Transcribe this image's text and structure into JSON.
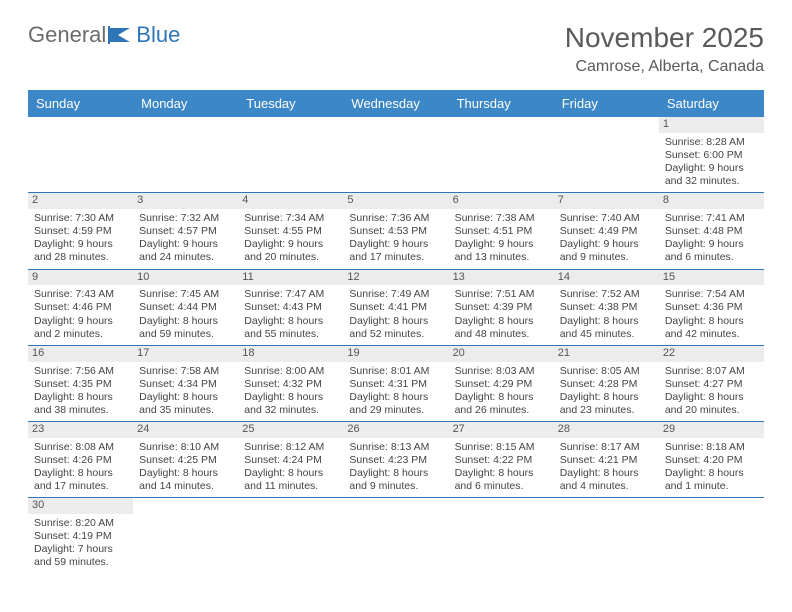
{
  "logo": {
    "text_a": "General",
    "text_b": "Blue"
  },
  "title": "November 2025",
  "location": "Camrose, Alberta, Canada",
  "colors": {
    "header_bg": "#3c87c7",
    "border": "#2f76b8",
    "daynum_bg": "#ececec",
    "text": "#444444",
    "title_text": "#5a5a5a",
    "logo_gray": "#6b6b6b",
    "logo_blue": "#2f76b8"
  },
  "fonts": {
    "title_size": 28,
    "location_size": 16,
    "header_size": 13,
    "cell_size": 10.5
  },
  "day_headers": [
    "Sunday",
    "Monday",
    "Tuesday",
    "Wednesday",
    "Thursday",
    "Friday",
    "Saturday"
  ],
  "weeks": [
    [
      null,
      null,
      null,
      null,
      null,
      null,
      {
        "n": "1",
        "sr": "Sunrise: 8:28 AM",
        "ss": "Sunset: 6:00 PM",
        "d1": "Daylight: 9 hours",
        "d2": "and 32 minutes."
      }
    ],
    [
      {
        "n": "2",
        "sr": "Sunrise: 7:30 AM",
        "ss": "Sunset: 4:59 PM",
        "d1": "Daylight: 9 hours",
        "d2": "and 28 minutes."
      },
      {
        "n": "3",
        "sr": "Sunrise: 7:32 AM",
        "ss": "Sunset: 4:57 PM",
        "d1": "Daylight: 9 hours",
        "d2": "and 24 minutes."
      },
      {
        "n": "4",
        "sr": "Sunrise: 7:34 AM",
        "ss": "Sunset: 4:55 PM",
        "d1": "Daylight: 9 hours",
        "d2": "and 20 minutes."
      },
      {
        "n": "5",
        "sr": "Sunrise: 7:36 AM",
        "ss": "Sunset: 4:53 PM",
        "d1": "Daylight: 9 hours",
        "d2": "and 17 minutes."
      },
      {
        "n": "6",
        "sr": "Sunrise: 7:38 AM",
        "ss": "Sunset: 4:51 PM",
        "d1": "Daylight: 9 hours",
        "d2": "and 13 minutes."
      },
      {
        "n": "7",
        "sr": "Sunrise: 7:40 AM",
        "ss": "Sunset: 4:49 PM",
        "d1": "Daylight: 9 hours",
        "d2": "and 9 minutes."
      },
      {
        "n": "8",
        "sr": "Sunrise: 7:41 AM",
        "ss": "Sunset: 4:48 PM",
        "d1": "Daylight: 9 hours",
        "d2": "and 6 minutes."
      }
    ],
    [
      {
        "n": "9",
        "sr": "Sunrise: 7:43 AM",
        "ss": "Sunset: 4:46 PM",
        "d1": "Daylight: 9 hours",
        "d2": "and 2 minutes."
      },
      {
        "n": "10",
        "sr": "Sunrise: 7:45 AM",
        "ss": "Sunset: 4:44 PM",
        "d1": "Daylight: 8 hours",
        "d2": "and 59 minutes."
      },
      {
        "n": "11",
        "sr": "Sunrise: 7:47 AM",
        "ss": "Sunset: 4:43 PM",
        "d1": "Daylight: 8 hours",
        "d2": "and 55 minutes."
      },
      {
        "n": "12",
        "sr": "Sunrise: 7:49 AM",
        "ss": "Sunset: 4:41 PM",
        "d1": "Daylight: 8 hours",
        "d2": "and 52 minutes."
      },
      {
        "n": "13",
        "sr": "Sunrise: 7:51 AM",
        "ss": "Sunset: 4:39 PM",
        "d1": "Daylight: 8 hours",
        "d2": "and 48 minutes."
      },
      {
        "n": "14",
        "sr": "Sunrise: 7:52 AM",
        "ss": "Sunset: 4:38 PM",
        "d1": "Daylight: 8 hours",
        "d2": "and 45 minutes."
      },
      {
        "n": "15",
        "sr": "Sunrise: 7:54 AM",
        "ss": "Sunset: 4:36 PM",
        "d1": "Daylight: 8 hours",
        "d2": "and 42 minutes."
      }
    ],
    [
      {
        "n": "16",
        "sr": "Sunrise: 7:56 AM",
        "ss": "Sunset: 4:35 PM",
        "d1": "Daylight: 8 hours",
        "d2": "and 38 minutes."
      },
      {
        "n": "17",
        "sr": "Sunrise: 7:58 AM",
        "ss": "Sunset: 4:34 PM",
        "d1": "Daylight: 8 hours",
        "d2": "and 35 minutes."
      },
      {
        "n": "18",
        "sr": "Sunrise: 8:00 AM",
        "ss": "Sunset: 4:32 PM",
        "d1": "Daylight: 8 hours",
        "d2": "and 32 minutes."
      },
      {
        "n": "19",
        "sr": "Sunrise: 8:01 AM",
        "ss": "Sunset: 4:31 PM",
        "d1": "Daylight: 8 hours",
        "d2": "and 29 minutes."
      },
      {
        "n": "20",
        "sr": "Sunrise: 8:03 AM",
        "ss": "Sunset: 4:29 PM",
        "d1": "Daylight: 8 hours",
        "d2": "and 26 minutes."
      },
      {
        "n": "21",
        "sr": "Sunrise: 8:05 AM",
        "ss": "Sunset: 4:28 PM",
        "d1": "Daylight: 8 hours",
        "d2": "and 23 minutes."
      },
      {
        "n": "22",
        "sr": "Sunrise: 8:07 AM",
        "ss": "Sunset: 4:27 PM",
        "d1": "Daylight: 8 hours",
        "d2": "and 20 minutes."
      }
    ],
    [
      {
        "n": "23",
        "sr": "Sunrise: 8:08 AM",
        "ss": "Sunset: 4:26 PM",
        "d1": "Daylight: 8 hours",
        "d2": "and 17 minutes."
      },
      {
        "n": "24",
        "sr": "Sunrise: 8:10 AM",
        "ss": "Sunset: 4:25 PM",
        "d1": "Daylight: 8 hours",
        "d2": "and 14 minutes."
      },
      {
        "n": "25",
        "sr": "Sunrise: 8:12 AM",
        "ss": "Sunset: 4:24 PM",
        "d1": "Daylight: 8 hours",
        "d2": "and 11 minutes."
      },
      {
        "n": "26",
        "sr": "Sunrise: 8:13 AM",
        "ss": "Sunset: 4:23 PM",
        "d1": "Daylight: 8 hours",
        "d2": "and 9 minutes."
      },
      {
        "n": "27",
        "sr": "Sunrise: 8:15 AM",
        "ss": "Sunset: 4:22 PM",
        "d1": "Daylight: 8 hours",
        "d2": "and 6 minutes."
      },
      {
        "n": "28",
        "sr": "Sunrise: 8:17 AM",
        "ss": "Sunset: 4:21 PM",
        "d1": "Daylight: 8 hours",
        "d2": "and 4 minutes."
      },
      {
        "n": "29",
        "sr": "Sunrise: 8:18 AM",
        "ss": "Sunset: 4:20 PM",
        "d1": "Daylight: 8 hours",
        "d2": "and 1 minute."
      }
    ],
    [
      {
        "n": "30",
        "sr": "Sunrise: 8:20 AM",
        "ss": "Sunset: 4:19 PM",
        "d1": "Daylight: 7 hours",
        "d2": "and 59 minutes."
      },
      null,
      null,
      null,
      null,
      null,
      null
    ]
  ]
}
